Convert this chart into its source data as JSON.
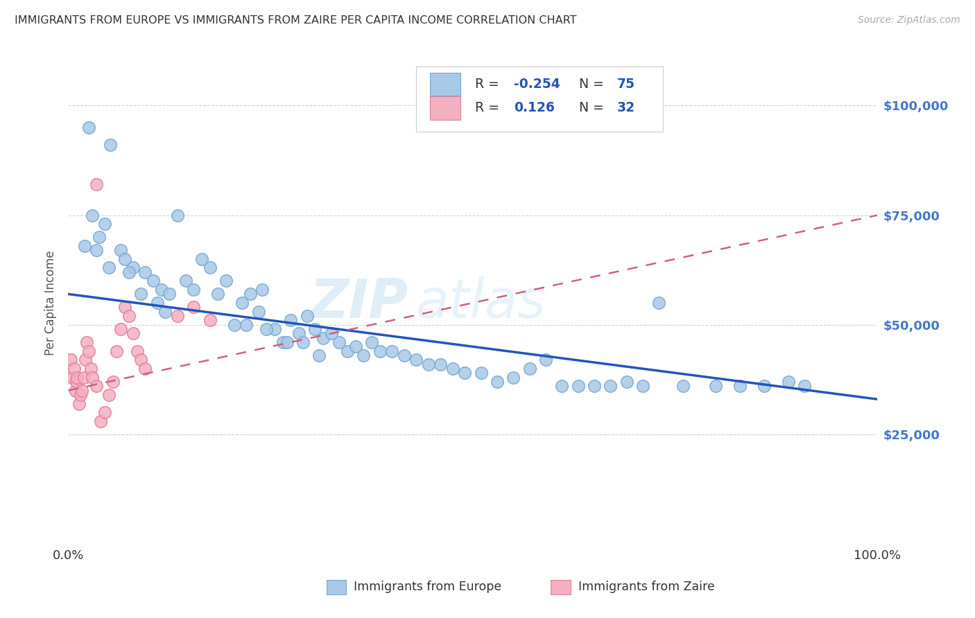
{
  "title": "IMMIGRANTS FROM EUROPE VS IMMIGRANTS FROM ZAIRE PER CAPITA INCOME CORRELATION CHART",
  "source": "Source: ZipAtlas.com",
  "ylabel": "Per Capita Income",
  "xlim": [
    0,
    100
  ],
  "ylim": [
    0,
    110000
  ],
  "yticks": [
    0,
    25000,
    50000,
    75000,
    100000
  ],
  "ytick_labels": [
    "",
    "$25,000",
    "$50,000",
    "$75,000",
    "$100,000"
  ],
  "watermark_zip": "ZIP",
  "watermark_atlas": "atlas",
  "europe_color": "#a8c8e8",
  "europe_edge": "#7aaad0",
  "zaire_color": "#f4afc0",
  "zaire_edge": "#e080a0",
  "europe_line_color": "#2255bb",
  "zaire_line_color": "#d06080",
  "europe_trend_y0": 57000,
  "europe_trend_y1": 33000,
  "zaire_trend_y0": 35000,
  "zaire_trend_y1": 75000,
  "legend_europe_label": "Immigrants from Europe",
  "legend_zaire_label": "Immigrants from Zaire",
  "bg_color": "#ffffff",
  "grid_color": "#cccccc",
  "title_color": "#333333",
  "right_ytick_color": "#4477cc",
  "legend_R_color": "#2255bb",
  "europe_pts_x": [
    2.5,
    5.2,
    3.8,
    2.0,
    3.0,
    4.5,
    6.5,
    7.0,
    8.0,
    9.5,
    10.5,
    11.5,
    12.5,
    13.5,
    14.5,
    15.5,
    16.5,
    17.5,
    18.5,
    19.5,
    20.5,
    21.5,
    22.5,
    23.5,
    24.0,
    25.5,
    26.5,
    27.5,
    28.5,
    29.5,
    30.5,
    31.5,
    32.5,
    33.5,
    34.5,
    35.5,
    36.5,
    37.5,
    38.5,
    40.0,
    41.5,
    43.0,
    44.5,
    46.0,
    47.5,
    49.0,
    51.0,
    53.0,
    55.0,
    57.0,
    59.0,
    61.0,
    63.0,
    65.0,
    67.0,
    69.0,
    71.0,
    73.0,
    76.0,
    80.0,
    83.0,
    86.0,
    89.0,
    91.0,
    3.5,
    5.0,
    7.5,
    9.0,
    11.0,
    12.0,
    22.0,
    24.5,
    27.0,
    29.0,
    31.0
  ],
  "europe_pts_y": [
    95000,
    91000,
    70000,
    68000,
    75000,
    73000,
    67000,
    65000,
    63000,
    62000,
    60000,
    58000,
    57000,
    75000,
    60000,
    58000,
    65000,
    63000,
    57000,
    60000,
    50000,
    55000,
    57000,
    53000,
    58000,
    49000,
    46000,
    51000,
    48000,
    52000,
    49000,
    47000,
    48000,
    46000,
    44000,
    45000,
    43000,
    46000,
    44000,
    44000,
    43000,
    42000,
    41000,
    41000,
    40000,
    39000,
    39000,
    37000,
    38000,
    40000,
    42000,
    36000,
    36000,
    36000,
    36000,
    37000,
    36000,
    55000,
    36000,
    36000,
    36000,
    36000,
    37000,
    36000,
    67000,
    63000,
    62000,
    57000,
    55000,
    53000,
    50000,
    49000,
    46000,
    46000,
    43000
  ],
  "zaire_pts_x": [
    0.3,
    0.5,
    0.7,
    0.9,
    1.0,
    1.1,
    1.3,
    1.5,
    1.7,
    1.9,
    2.1,
    2.3,
    2.5,
    2.8,
    3.0,
    3.5,
    4.0,
    4.5,
    5.0,
    5.5,
    6.0,
    6.5,
    7.0,
    7.5,
    8.0,
    8.5,
    9.0,
    9.5,
    13.5,
    15.5,
    17.5,
    3.5
  ],
  "zaire_pts_y": [
    42000,
    38000,
    40000,
    35000,
    37000,
    38000,
    32000,
    34000,
    35000,
    38000,
    42000,
    46000,
    44000,
    40000,
    38000,
    36000,
    28000,
    30000,
    34000,
    37000,
    44000,
    49000,
    54000,
    52000,
    48000,
    44000,
    42000,
    40000,
    52000,
    54000,
    51000,
    82000
  ]
}
